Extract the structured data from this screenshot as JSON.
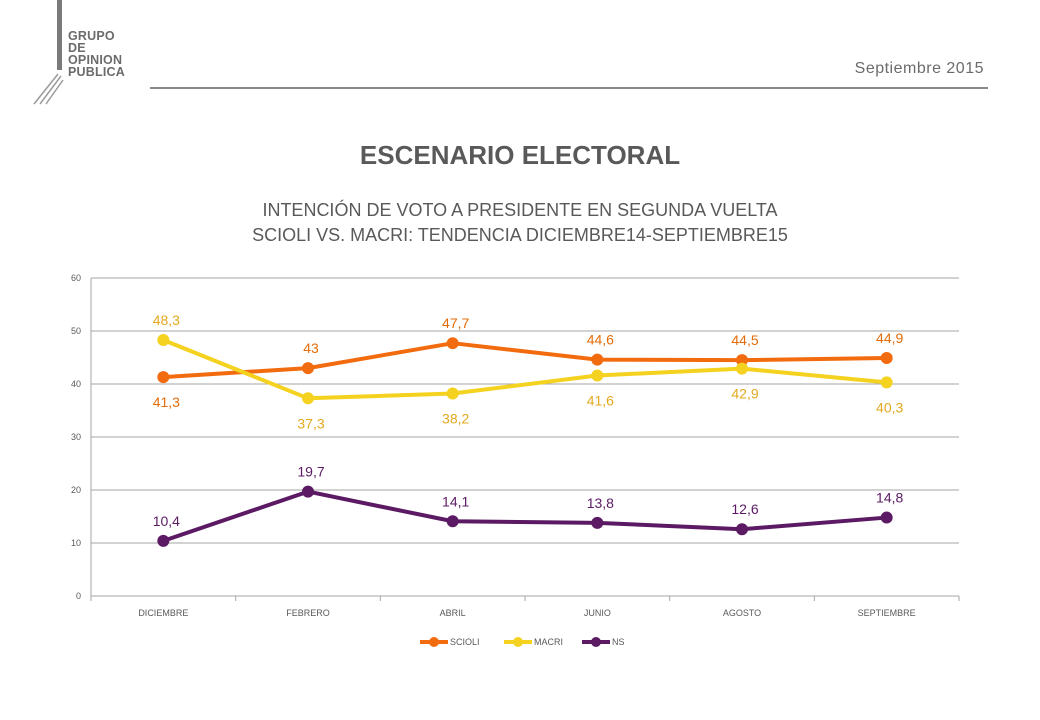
{
  "header": {
    "logo_lines": [
      "GRUPO",
      "DE",
      "OPINION",
      "PUBLICA"
    ],
    "date": "Septiembre 2015"
  },
  "title": "ESCENARIO ELECTORAL",
  "subtitle_line1": "INTENCIÓN DE VOTO A PRESIDENTE EN SEGUNDA VUELTA",
  "subtitle_line2": "SCIOLI VS. MACRI: TENDENCIA DICIEMBRE14-SEPTIEMBRE15",
  "colors": {
    "scioli": "#F26B0F",
    "macri": "#F4D21F",
    "ns": "#5B1A63",
    "gray": "#6b6b6b"
  },
  "chart_data": {
    "type": "line",
    "categories": [
      "DICIEMBRE",
      "FEBRERO",
      "ABRIL",
      "JUNIO",
      "AGOSTO",
      "SEPTIEMBRE"
    ],
    "ylim": [
      0,
      60
    ],
    "yticks": [
      0,
      10,
      20,
      30,
      40,
      50,
      60
    ],
    "grid": true,
    "legend": "bottom",
    "series": [
      {
        "name": "SCIOLI",
        "color": "#F26B0F",
        "label_color": "#E46C0A",
        "values": [
          41.3,
          43,
          47.7,
          44.6,
          44.5,
          44.9
        ],
        "labels": [
          "41,3",
          "43",
          "47,7",
          "44,6",
          "44,5",
          "44,9"
        ],
        "label_pos": [
          "below",
          "above",
          "above",
          "above",
          "above",
          "above"
        ]
      },
      {
        "name": "MACRI",
        "color": "#F4D21F",
        "label_color": "#E3A91E",
        "values": [
          48.3,
          37.3,
          38.2,
          41.6,
          42.9,
          40.3
        ],
        "labels": [
          "48,3",
          "37,3",
          "38,2",
          "41,6",
          "42,9",
          "40,3"
        ],
        "label_pos": [
          "above",
          "below",
          "below",
          "below",
          "below",
          "below"
        ]
      },
      {
        "name": "NS",
        "color": "#5B1A63",
        "label_color": "#5B1A63",
        "values": [
          10.4,
          19.7,
          14.1,
          13.8,
          12.6,
          14.8
        ],
        "labels": [
          "10,4",
          "19,7",
          "14,1",
          "13,8",
          "12,6",
          "14,8"
        ],
        "label_pos": [
          "above",
          "above",
          "above",
          "above",
          "above",
          "above"
        ]
      }
    ]
  }
}
